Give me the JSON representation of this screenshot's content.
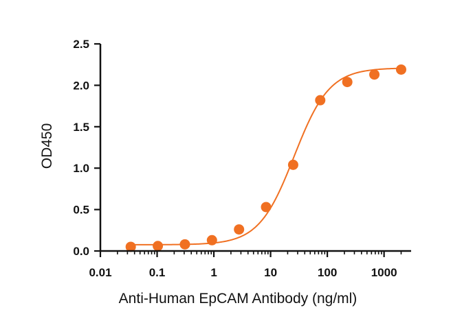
{
  "chart_data": {
    "type": "scatter",
    "xscale": "log",
    "xlabel": "Anti-Human EpCAM Antibody (ng/ml)",
    "ylabel": "OD450",
    "xlim": [
      0.01,
      3000
    ],
    "ylim": [
      0,
      2.5
    ],
    "x_ticks": [
      0.01,
      0.1,
      1,
      10,
      100,
      1000
    ],
    "x_tick_labels": [
      "0.01",
      "0.1",
      "1",
      "10",
      "100",
      "1000"
    ],
    "y_ticks": [
      0,
      0.5,
      1,
      1.5,
      2,
      2.5
    ],
    "y_tick_labels": [
      "0.0",
      "0.5",
      "1.0",
      "1.5",
      "2.0",
      "2.5"
    ],
    "grid": false,
    "legend": "none",
    "color": "#F07022",
    "points": {
      "x": [
        0.0343,
        0.103,
        0.309,
        0.926,
        2.78,
        8.33,
        25,
        75,
        225,
        675,
        2000
      ],
      "y": [
        0.05,
        0.06,
        0.08,
        0.13,
        0.26,
        0.53,
        1.04,
        1.82,
        2.04,
        2.13,
        2.19
      ]
    },
    "fit_curve": {
      "model": "4PL",
      "bottom": 0.075,
      "top": 2.21,
      "ec50": 26,
      "hill": 1.4
    }
  }
}
